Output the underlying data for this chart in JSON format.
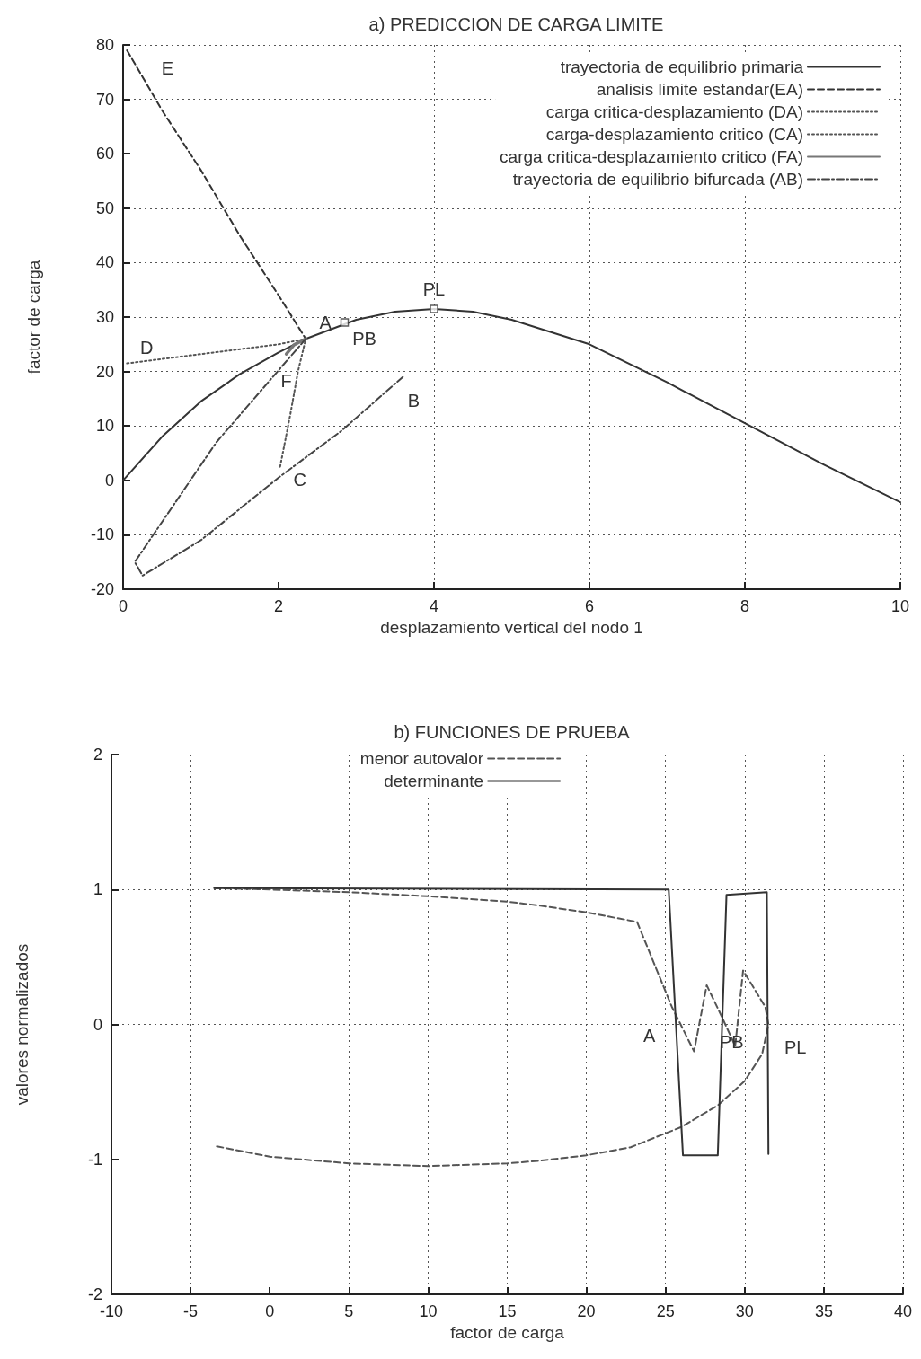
{
  "chart_data": [
    {
      "type": "line",
      "title": "a) PREDICCION DE CARGA LIMITE",
      "xlabel": "desplazamiento vertical del nodo 1",
      "ylabel": "factor de carga",
      "xlim": [
        0,
        10
      ],
      "xticks": [
        0,
        2,
        4,
        6,
        8,
        10
      ],
      "ylim": [
        -20,
        80
      ],
      "yticks": [
        -20,
        -10,
        0,
        10,
        20,
        30,
        40,
        50,
        60,
        70,
        80
      ],
      "grid": true,
      "legend": "top right",
      "marker": "none",
      "series": [
        {
          "name": "trayectoria de equilibrio primaria",
          "color": "#333333",
          "line_style": "solid",
          "x": [
            0,
            0.5,
            1,
            1.5,
            2,
            2.35,
            3,
            3.5,
            4,
            4.5,
            5,
            6,
            7,
            8,
            9,
            10
          ],
          "values": [
            0,
            8,
            14.5,
            19.5,
            23.5,
            26,
            29.5,
            31,
            31.5,
            31,
            29.5,
            25,
            18,
            10.5,
            3,
            -4
          ]
        },
        {
          "name": "analisis limite estandar(EA)",
          "color": "#333333",
          "line_style": "dashed",
          "x": [
            0.05,
            0.5,
            1,
            1.5,
            2,
            2.35
          ],
          "values": [
            79,
            68,
            57,
            45,
            34,
            26
          ]
        },
        {
          "name": "carga critica-desplazamiento (DA)",
          "color": "#555555",
          "line_style": "dotted",
          "x": [
            0.05,
            1,
            2,
            2.35
          ],
          "values": [
            21.5,
            23.2,
            25,
            26
          ]
        },
        {
          "name": "carga-desplazamiento critico (CA)",
          "color": "#555555",
          "line_style": "dotted",
          "x": [
            2.02,
            2.15,
            2.25,
            2.35
          ],
          "values": [
            2.5,
            12,
            20,
            26
          ]
        },
        {
          "name": "carga critica-desplazamiento critico (FA)",
          "color": "#777777",
          "line_style": "solid",
          "x": [
            2.1,
            2.2,
            2.35
          ],
          "values": [
            23.2,
            24.9,
            26
          ]
        },
        {
          "name": "trayectoria de equilibrio bifurcada (AB)",
          "color": "#444444",
          "line_style": "dashdot",
          "x": [
            2.35,
            1.2,
            0.15,
            0.25,
            1,
            2,
            2.8,
            3.6
          ],
          "values": [
            26,
            7,
            -15,
            -17.5,
            -11,
            0.5,
            9,
            19
          ]
        },
        {
          "type": "scatter",
          "color": "#333333",
          "marker": "square",
          "x": [
            2.85,
            4
          ],
          "values": [
            29,
            31.5
          ]
        }
      ],
      "annotations": [
        {
          "text": "E",
          "x": 0.05,
          "y": 79
        },
        {
          "text": "D",
          "x": 0.05,
          "y": 21.5
        },
        {
          "text": "A",
          "x": 2.35,
          "y": 26
        },
        {
          "text": "F",
          "x": 2.1,
          "y": 23.2
        },
        {
          "text": "PB",
          "x": 2.85,
          "y": 29
        },
        {
          "text": "PL",
          "x": 4,
          "y": 31.5
        },
        {
          "text": "B",
          "x": 3.6,
          "y": 19
        },
        {
          "text": "C",
          "x": 2.02,
          "y": 2.5
        }
      ]
    },
    {
      "type": "line",
      "title": "b) FUNCIONES DE PRUEBA",
      "xlabel": "factor de carga",
      "ylabel": "valores normalizados",
      "xlim": [
        -10,
        40
      ],
      "xticks": [
        -10,
        -5,
        0,
        5,
        10,
        15,
        20,
        25,
        30,
        35,
        40
      ],
      "ylim": [
        -2,
        2
      ],
      "yticks": [
        -2,
        -1,
        0,
        1,
        2
      ],
      "grid": true,
      "legend": "top",
      "marker": "none",
      "series": [
        {
          "name": "menor autovalor",
          "color": "#555555",
          "line_style": "dashed",
          "x": [
            -3.5,
            0,
            5,
            10,
            15,
            17.1,
            20,
            23.2,
            25.4,
            26.8,
            27.6,
            28.5,
            29.4,
            29.9,
            31.3,
            31.5,
            31.1,
            30,
            28.3,
            26,
            22.8,
            20,
            17.1,
            15,
            10,
            5,
            0,
            -3.5
          ],
          "values": [
            1.01,
            1.0,
            0.98,
            0.95,
            0.91,
            0.88,
            0.83,
            0.76,
            0.13,
            -0.2,
            0.29,
            0.07,
            -0.16,
            0.4,
            0.13,
            0,
            -0.22,
            -0.42,
            -0.6,
            -0.76,
            -0.91,
            -0.97,
            -1.01,
            -1.03,
            -1.05,
            -1.03,
            -0.98,
            -0.9
          ]
        },
        {
          "name": "determinante",
          "color": "#333333",
          "line_style": "solid",
          "x": [
            -3.5,
            25.2,
            26.1,
            28.3,
            28.85,
            31.4,
            31.5
          ],
          "values": [
            1.01,
            1.0,
            -0.97,
            -0.97,
            0.96,
            0.98,
            -0.96
          ]
        }
      ],
      "annotations": [
        {
          "text": "A",
          "x": 25.4,
          "y": 0.13
        },
        {
          "text": "PB",
          "x": 28.5,
          "y": 0.07
        },
        {
          "text": "PL",
          "x": 31.5,
          "y": 0
        }
      ]
    }
  ]
}
